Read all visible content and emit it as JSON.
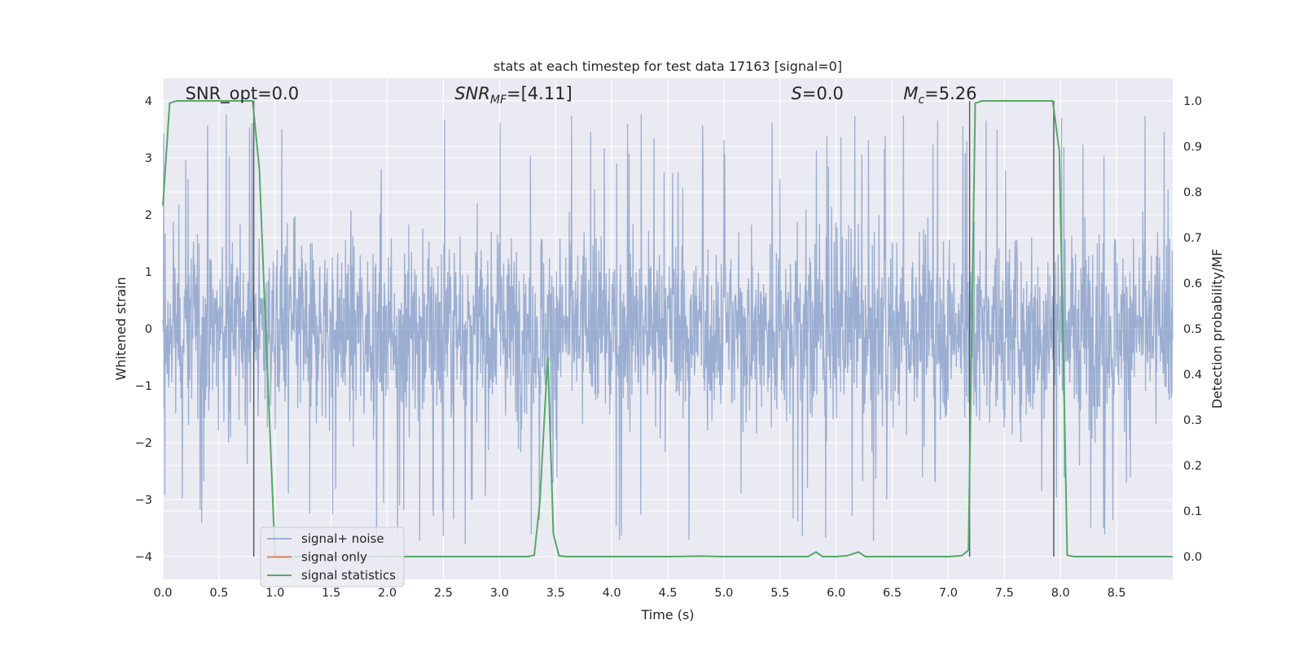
{
  "chart_data": {
    "type": "line",
    "title": "stats at each timestep for test data 17163 [signal=0]",
    "xlabel": "Time (s)",
    "ylabel": "Whitened strain",
    "ylabel_right": "Detection probability/MF",
    "xlim": [
      0,
      9.0
    ],
    "ylim": [
      -4.4,
      4.4
    ],
    "ylim_right": [
      -0.05,
      1.05
    ],
    "x_ticks": [
      "0.0",
      "0.5",
      "1.0",
      "1.5",
      "2.0",
      "2.5",
      "3.0",
      "3.5",
      "4.0",
      "4.5",
      "5.0",
      "5.5",
      "6.0",
      "6.5",
      "7.0",
      "7.5",
      "8.0",
      "8.5"
    ],
    "y_ticks": [
      "−4",
      "−3",
      "−2",
      "−1",
      "0",
      "1",
      "2",
      "3",
      "4"
    ],
    "y_right_ticks": [
      "0.0",
      "0.1",
      "0.2",
      "0.3",
      "0.4",
      "0.5",
      "0.6",
      "0.7",
      "0.8",
      "0.9",
      "1.0"
    ],
    "grid": true,
    "legend_placement": "lower-left",
    "annotations": [
      {
        "text": "SNR_opt=0.0",
        "x": 0.2
      },
      {
        "text": "SNR_MF=[4.11]",
        "x": 2.6
      },
      {
        "text": "S=0.0",
        "x": 5.6
      },
      {
        "text": "M_c=5.26",
        "x": 6.6
      }
    ],
    "series": [
      {
        "name": "signal+ noise",
        "color": "#4c72b0",
        "alpha": 0.5,
        "description": "whitened strain noise, sampled values between about -4 and 4",
        "peak_max": 4.0,
        "peak_min": -4.0
      },
      {
        "name": "signal only",
        "color": "#dd8452",
        "values": "flat at 0"
      },
      {
        "name": "signal statistics",
        "color": "#55a868",
        "axis": "right",
        "x": [
          0.0,
          0.06,
          0.12,
          0.2,
          0.8,
          0.86,
          0.9,
          0.95,
          1.0,
          1.1,
          1.5,
          2.0,
          2.5,
          3.0,
          3.25,
          3.31,
          3.36,
          3.43,
          3.48,
          3.53,
          3.6,
          4.0,
          4.5,
          4.8,
          5.0,
          5.5,
          5.75,
          5.82,
          5.88,
          6.0,
          6.1,
          6.2,
          6.26,
          6.5,
          7.0,
          7.12,
          7.18,
          7.24,
          7.3,
          7.93,
          7.99,
          8.06,
          8.12,
          8.5,
          9.0
        ],
        "y": [
          0.77,
          0.995,
          1.0,
          1.0,
          1.0,
          0.85,
          0.6,
          0.3,
          0.0,
          0.0,
          0.0,
          0.0,
          0.0,
          0.0,
          0.0,
          0.003,
          0.12,
          0.44,
          0.05,
          0.002,
          0.0,
          0.0,
          0.0,
          0.001,
          0.0,
          0.0,
          0.0,
          0.01,
          0.0,
          0.0,
          0.002,
          0.01,
          0.0,
          0.0,
          0.0,
          0.002,
          0.014,
          0.995,
          1.0,
          1.0,
          0.89,
          0.003,
          0.0,
          0.0,
          0.0
        ]
      }
    ],
    "vertical_markers_x": [
      0.81,
      7.19,
      7.94
    ]
  }
}
